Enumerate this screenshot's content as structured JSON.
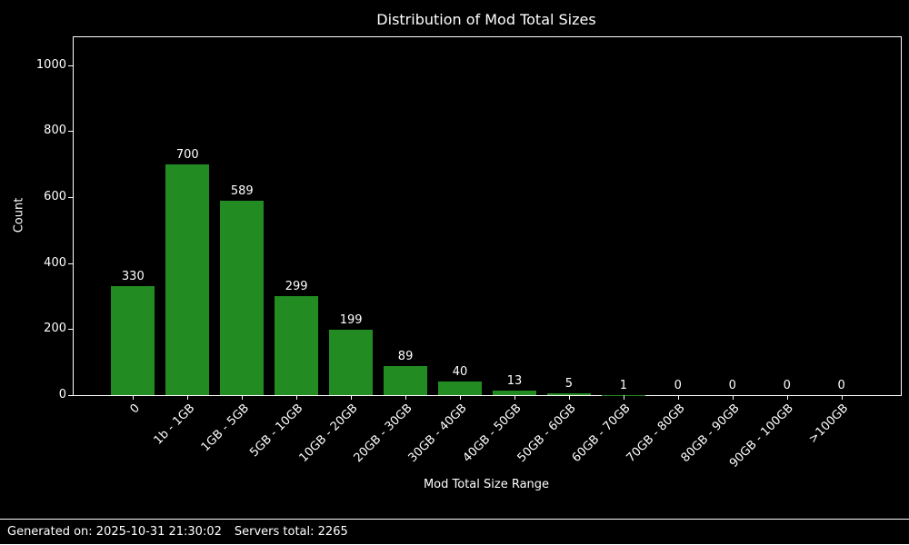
{
  "colors": {
    "background": "#000000",
    "bar": "#228B22",
    "text": "#ffffff",
    "axis": "#ffffff"
  },
  "footer": {
    "generated": "Generated on: 2025-10-31 21:30:02",
    "servers_total": "Servers total: 2265"
  },
  "chart_data": {
    "type": "bar",
    "title": "Distribution of Mod Total Sizes",
    "xlabel": "Mod Total Size Range",
    "ylabel": "Count",
    "categories": [
      "0",
      "1b - 1GB",
      "1GB - 5GB",
      "5GB - 10GB",
      "10GB - 20GB",
      "20GB - 30GB",
      "30GB - 40GB",
      "40GB - 50GB",
      "50GB - 60GB",
      "60GB - 70GB",
      "70GB - 80GB",
      "80GB - 90GB",
      "90GB - 100GB",
      ">100GB"
    ],
    "values": [
      330,
      700,
      589,
      299,
      199,
      89,
      40,
      13,
      5,
      1,
      0,
      0,
      0,
      0
    ],
    "value_labels": [
      "330",
      "700",
      "589",
      "299",
      "199",
      "89",
      "40",
      "13",
      "5",
      "1",
      "0",
      "0",
      "0",
      "0"
    ],
    "yticks": [
      0,
      200,
      400,
      600,
      800,
      1000
    ],
    "ylim": [
      0,
      1085
    ],
    "xlim": [
      -1.09,
      14.09
    ],
    "bar_width": 0.8,
    "grid": false,
    "legend": "none",
    "background": "black"
  }
}
